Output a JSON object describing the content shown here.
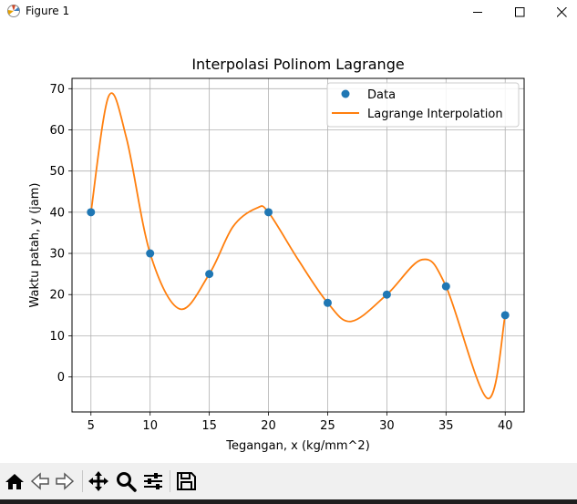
{
  "window": {
    "title": "Figure 1"
  },
  "chart_data": {
    "type": "scatter",
    "title": "Interpolasi Polinom Lagrange",
    "xlabel": "Tegangan, x (kg/mm^2)",
    "ylabel": "Waktu patah, y (jam)",
    "xlim": [
      3.4,
      41.6
    ],
    "ylim": [
      -8.5,
      72.5
    ],
    "xticks": [
      5,
      10,
      15,
      20,
      25,
      30,
      35,
      40
    ],
    "yticks": [
      0,
      10,
      20,
      30,
      40,
      50,
      60,
      70
    ],
    "grid": true,
    "legend_position": "top-right",
    "series": [
      {
        "name": "Data",
        "kind": "scatter",
        "color": "#1f77b4",
        "x": [
          5,
          10,
          15,
          20,
          25,
          30,
          35,
          40
        ],
        "y": [
          40,
          30,
          25,
          40,
          18,
          20,
          22,
          15
        ]
      },
      {
        "name": "Lagrange Interpolation",
        "kind": "line",
        "color": "#ff7f0e",
        "x": [
          5,
          6.5,
          8,
          10,
          12.5,
          15,
          17,
          19,
          20,
          22.5,
          25,
          27,
          30,
          33,
          35,
          38.5,
          40
        ],
        "y": [
          40,
          68.2,
          58,
          30,
          16.5,
          25,
          36.5,
          41,
          40,
          28.5,
          18,
          13.5,
          20,
          28.5,
          22,
          -5.2,
          15
        ]
      }
    ]
  },
  "toolbar": {
    "buttons": [
      {
        "name": "home-button",
        "icon": "home-icon"
      },
      {
        "name": "back-button",
        "icon": "arrow-left-icon"
      },
      {
        "name": "forward-button",
        "icon": "arrow-right-icon"
      },
      {
        "name": "pan-button",
        "icon": "move-icon"
      },
      {
        "name": "zoom-button",
        "icon": "zoom-icon"
      },
      {
        "name": "configure-subplots-button",
        "icon": "sliders-icon"
      },
      {
        "name": "save-button",
        "icon": "save-icon"
      }
    ]
  }
}
